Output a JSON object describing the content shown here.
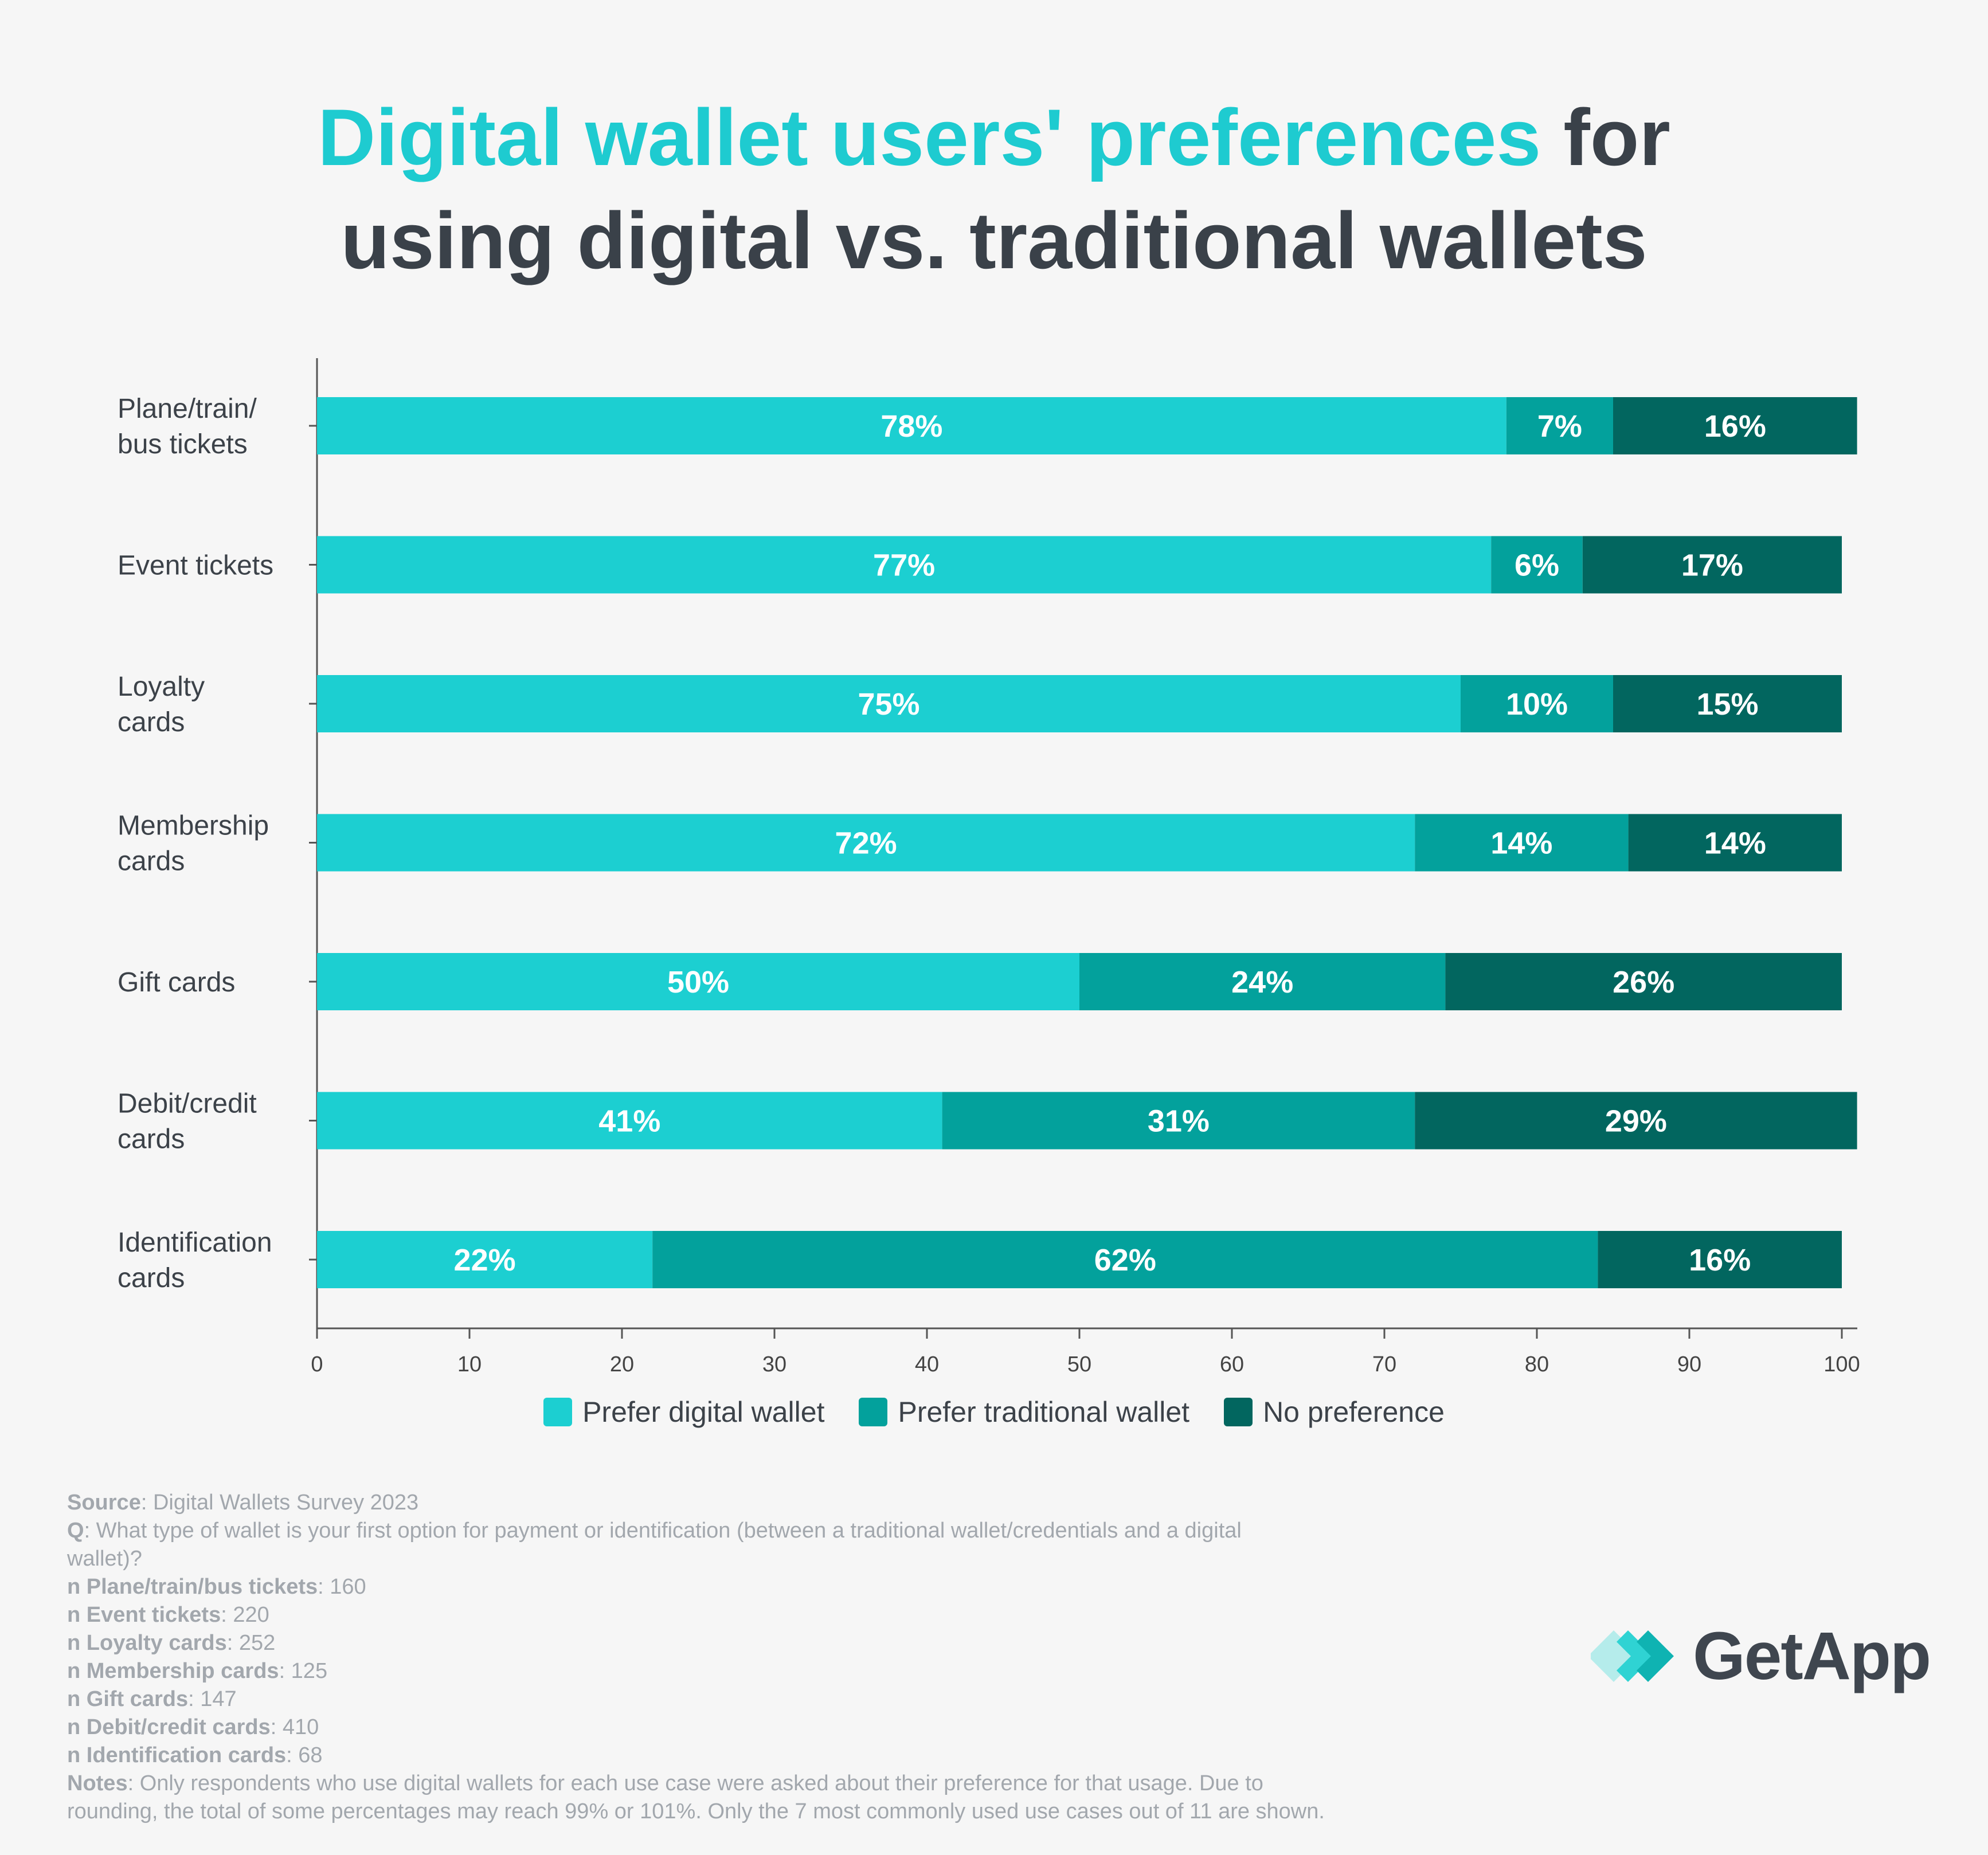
{
  "title": {
    "highlight": "Digital wallet users' preferences",
    "rest": "for",
    "line2": "using digital vs. traditional wallets"
  },
  "colors": {
    "digital": "#1ccfd1",
    "traditional": "#03a19c",
    "no_preference": "#02665f",
    "title_highlight": "#1ecbd0",
    "title_dark": "#3a4149",
    "background": "#f6f6f6"
  },
  "chart_data": {
    "type": "bar",
    "orientation": "horizontal",
    "stacked": true,
    "categories": [
      [
        "Plane/train/",
        "bus tickets"
      ],
      [
        "Event tickets"
      ],
      [
        "Loyalty",
        "cards"
      ],
      [
        "Membership",
        "cards"
      ],
      [
        "Gift cards"
      ],
      [
        "Debit/credit",
        "cards"
      ],
      [
        "Identification",
        "cards"
      ]
    ],
    "series": [
      {
        "name": "Prefer digital wallet",
        "values": [
          78,
          77,
          75,
          72,
          50,
          41,
          22
        ]
      },
      {
        "name": "Prefer traditional wallet",
        "values": [
          7,
          6,
          10,
          14,
          24,
          31,
          62
        ]
      },
      {
        "name": "No preference",
        "values": [
          16,
          17,
          15,
          14,
          26,
          29,
          16
        ]
      }
    ],
    "value_suffix": "%",
    "xlim": [
      0,
      100
    ],
    "xticks": [
      0,
      10,
      20,
      30,
      40,
      50,
      60,
      70,
      80,
      90,
      100
    ],
    "legend_position": "bottom-center",
    "grid": false
  },
  "legend": [
    {
      "label": "Prefer digital wallet",
      "color": "#1ccfd1"
    },
    {
      "label": "Prefer traditional wallet",
      "color": "#03a19c"
    },
    {
      "label": "No preference",
      "color": "#02665f"
    }
  ],
  "footnotes": [
    {
      "label": "Source",
      "text": ": Digital Wallets Survey 2023"
    },
    {
      "label": "Q",
      "text": ": What type of wallet is your first option for payment or identification (between a traditional wallet/credentials and a digital"
    },
    {
      "label": "",
      "text": "wallet)?"
    },
    {
      "label": "n Plane/train/bus tickets",
      "text": ": 160"
    },
    {
      "label": "n Event tickets",
      "text": ": 220"
    },
    {
      "label": "n Loyalty cards",
      "text": ": 252"
    },
    {
      "label": "n Membership cards",
      "text": ": 125"
    },
    {
      "label": "n Gift cards",
      "text": ": 147"
    },
    {
      "label": "n Debit/credit cards",
      "text": ": 410"
    },
    {
      "label": "n Identification cards",
      "text": ": 68"
    },
    {
      "label": "Notes",
      "text": ": Only respondents who use digital wallets for each use case were asked about their preference for that usage. Due to"
    },
    {
      "label": "",
      "text": "rounding, the total of some percentages may reach 99% or 101%. Only the 7 most commonly used use cases out of 11 are shown."
    }
  ],
  "logo": {
    "text": "GetApp",
    "icon": "getapp-chevrons-icon"
  }
}
